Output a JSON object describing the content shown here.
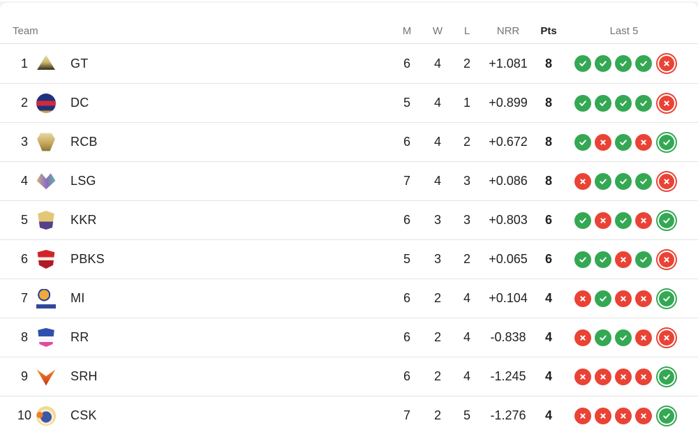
{
  "table": {
    "columns": {
      "team": "Team",
      "m": "M",
      "w": "W",
      "l": "L",
      "nrr": "NRR",
      "pts": "Pts",
      "last5": "Last 5"
    },
    "rows": [
      {
        "rank": "1",
        "team": "GT",
        "logo": "gt",
        "m": "6",
        "w": "4",
        "l": "2",
        "nrr": "+1.081",
        "pts": "8",
        "last5": [
          "W",
          "W",
          "W",
          "W",
          "L"
        ]
      },
      {
        "rank": "2",
        "team": "DC",
        "logo": "dc",
        "m": "5",
        "w": "4",
        "l": "1",
        "nrr": "+0.899",
        "pts": "8",
        "last5": [
          "W",
          "W",
          "W",
          "W",
          "L"
        ]
      },
      {
        "rank": "3",
        "team": "RCB",
        "logo": "rcb",
        "m": "6",
        "w": "4",
        "l": "2",
        "nrr": "+0.672",
        "pts": "8",
        "last5": [
          "W",
          "L",
          "W",
          "L",
          "W"
        ]
      },
      {
        "rank": "4",
        "team": "LSG",
        "logo": "lsg",
        "m": "7",
        "w": "4",
        "l": "3",
        "nrr": "+0.086",
        "pts": "8",
        "last5": [
          "L",
          "W",
          "W",
          "W",
          "L"
        ]
      },
      {
        "rank": "5",
        "team": "KKR",
        "logo": "kkr",
        "m": "6",
        "w": "3",
        "l": "3",
        "nrr": "+0.803",
        "pts": "6",
        "last5": [
          "W",
          "L",
          "W",
          "L",
          "W"
        ]
      },
      {
        "rank": "6",
        "team": "PBKS",
        "logo": "pbks",
        "m": "5",
        "w": "3",
        "l": "2",
        "nrr": "+0.065",
        "pts": "6",
        "last5": [
          "W",
          "W",
          "L",
          "W",
          "L"
        ]
      },
      {
        "rank": "7",
        "team": "MI",
        "logo": "mi",
        "m": "6",
        "w": "2",
        "l": "4",
        "nrr": "+0.104",
        "pts": "4",
        "last5": [
          "L",
          "W",
          "L",
          "L",
          "W"
        ]
      },
      {
        "rank": "8",
        "team": "RR",
        "logo": "rr",
        "m": "6",
        "w": "2",
        "l": "4",
        "nrr": "-0.838",
        "pts": "4",
        "last5": [
          "L",
          "W",
          "W",
          "L",
          "L"
        ]
      },
      {
        "rank": "9",
        "team": "SRH",
        "logo": "srh",
        "m": "6",
        "w": "2",
        "l": "4",
        "nrr": "-1.245",
        "pts": "4",
        "last5": [
          "L",
          "L",
          "L",
          "L",
          "W"
        ]
      },
      {
        "rank": "10",
        "team": "CSK",
        "logo": "csk",
        "m": "7",
        "w": "2",
        "l": "5",
        "nrr": "-1.276",
        "pts": "4",
        "last5": [
          "L",
          "L",
          "L",
          "L",
          "W"
        ]
      }
    ]
  },
  "colors": {
    "win": "#34a853",
    "loss": "#ea4335"
  },
  "icons": {
    "win": "win-check-icon",
    "loss": "loss-cross-icon"
  }
}
